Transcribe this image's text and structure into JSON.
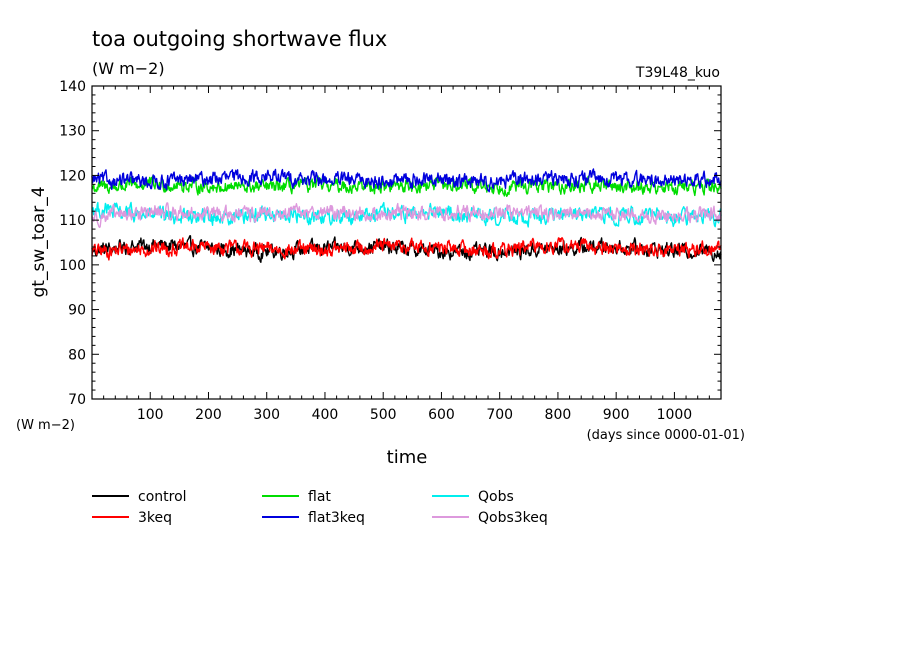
{
  "chart_data": {
    "type": "line",
    "title": "toa outgoing shortwave flux",
    "units": "(W m−2)",
    "experiment": "T39L48_kuo",
    "ylabel": "gt_sw_toar_4",
    "yunit_label": "(W m−2)",
    "xlabel": "time",
    "xunit_label": "(days since 0000-01-01)",
    "xlim": [
      0,
      1080
    ],
    "ylim": [
      70,
      140
    ],
    "xticks": [
      100,
      200,
      300,
      400,
      500,
      600,
      700,
      800,
      900,
      1000
    ],
    "yticks": [
      70,
      80,
      90,
      100,
      110,
      120,
      130,
      140
    ],
    "legend_position": "bottom",
    "series": [
      {
        "name": "control",
        "color": "#000000",
        "mean": 103.5,
        "noise": 1.3,
        "values": [
          103.2,
          104.5,
          103.8,
          102.9,
          103.7,
          104.1,
          103.0,
          102.8,
          103.6,
          104.2,
          103.4,
          102.9
        ]
      },
      {
        "name": "3keq",
        "color": "#ff0000",
        "mean": 103.5,
        "noise": 1.3,
        "values": [
          103.0,
          103.6,
          104.0,
          103.5,
          103.2,
          104.1,
          103.9,
          103.1,
          104.4,
          103.8,
          103.3,
          103.7
        ]
      },
      {
        "name": "flat",
        "color": "#00dd00",
        "mean": 117.5,
        "noise": 1.2,
        "values": [
          117.2,
          118.0,
          117.6,
          117.3,
          117.8,
          117.5,
          117.9,
          117.4,
          117.6,
          117.8,
          117.3,
          117.5
        ]
      },
      {
        "name": "flat3keq",
        "color": "#0000dd",
        "mean": 119.0,
        "noise": 1.3,
        "values": [
          119.0,
          118.6,
          119.2,
          119.8,
          119.0,
          118.8,
          119.1,
          118.7,
          119.3,
          119.2,
          118.9,
          119.0
        ]
      },
      {
        "name": "Qobs",
        "color": "#00eeee",
        "mean": 111.0,
        "noise": 1.4,
        "values": [
          112.5,
          111.0,
          110.6,
          111.4,
          110.8,
          111.2,
          111.6,
          110.9,
          111.0,
          111.3,
          110.7,
          110.8
        ]
      },
      {
        "name": "Qobs3keq",
        "color": "#dd99dd",
        "mean": 111.5,
        "noise": 1.3,
        "values": [
          110.6,
          111.8,
          111.4,
          111.2,
          112.0,
          111.3,
          111.6,
          111.9,
          111.5,
          111.2,
          111.0,
          111.4
        ]
      }
    ]
  }
}
